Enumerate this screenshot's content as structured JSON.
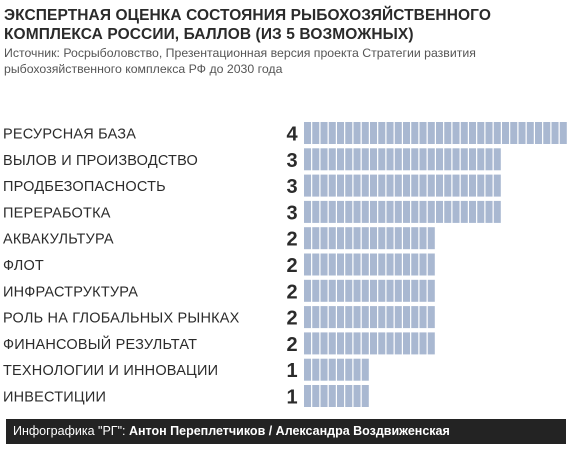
{
  "title": "ЭКСПЕРТНАЯ ОЦЕНКА СОСТОЯНИЯ РЫБОХОЗЯЙСТВЕННОГО КОМПЛЕКСА РОССИИ, БАЛЛОВ (ИЗ 5 ВОЗМОЖНЫХ)",
  "source": "Источник: Росрыболовство, Презентационная версия проекта Стратегии развития рыбохозяйственного комплекса РФ до 2030 года",
  "footer": {
    "prefix": "Инфографика \"РГ\": ",
    "authors": "Антон Переплетчиков / Александра Воздвиженская"
  },
  "colors": {
    "bar": "#a9b8d1",
    "text": "#2b2b2b",
    "footer_bg": "#232323"
  },
  "chart_data": {
    "type": "bar",
    "orientation": "horizontal",
    "title": "ЭКСПЕРТНАЯ ОЦЕНКА СОСТОЯНИЯ РЫБОХОЗЯЙСТВЕННОГО КОМПЛЕКСА РОССИИ, БАЛЛОВ (ИЗ 5 ВОЗМОЖНЫХ)",
    "categories": [
      "РЕСУРСНАЯ БАЗА",
      "ВЫЛОВ И ПРОИЗВОДСТВО",
      "ПРОДБЕЗОПАСНОСТЬ",
      "ПЕРЕРАБОТКА",
      "АКВАКУЛЬТУРА",
      "ФЛОТ",
      "ИНФРАСТРУКТУРА",
      "РОЛЬ НА ГЛОБАЛЬНЫХ РЫНКАХ",
      "ФИНАНСОВЫЙ РЕЗУЛЬТАТ",
      "ТЕХНОЛОГИИ И ИННОВАЦИИ",
      "ИНВЕСТИЦИИ"
    ],
    "values": [
      4,
      3,
      3,
      3,
      2,
      2,
      2,
      2,
      2,
      1,
      1
    ],
    "xlim": [
      0,
      4
    ],
    "grid": false,
    "legend": "none"
  }
}
